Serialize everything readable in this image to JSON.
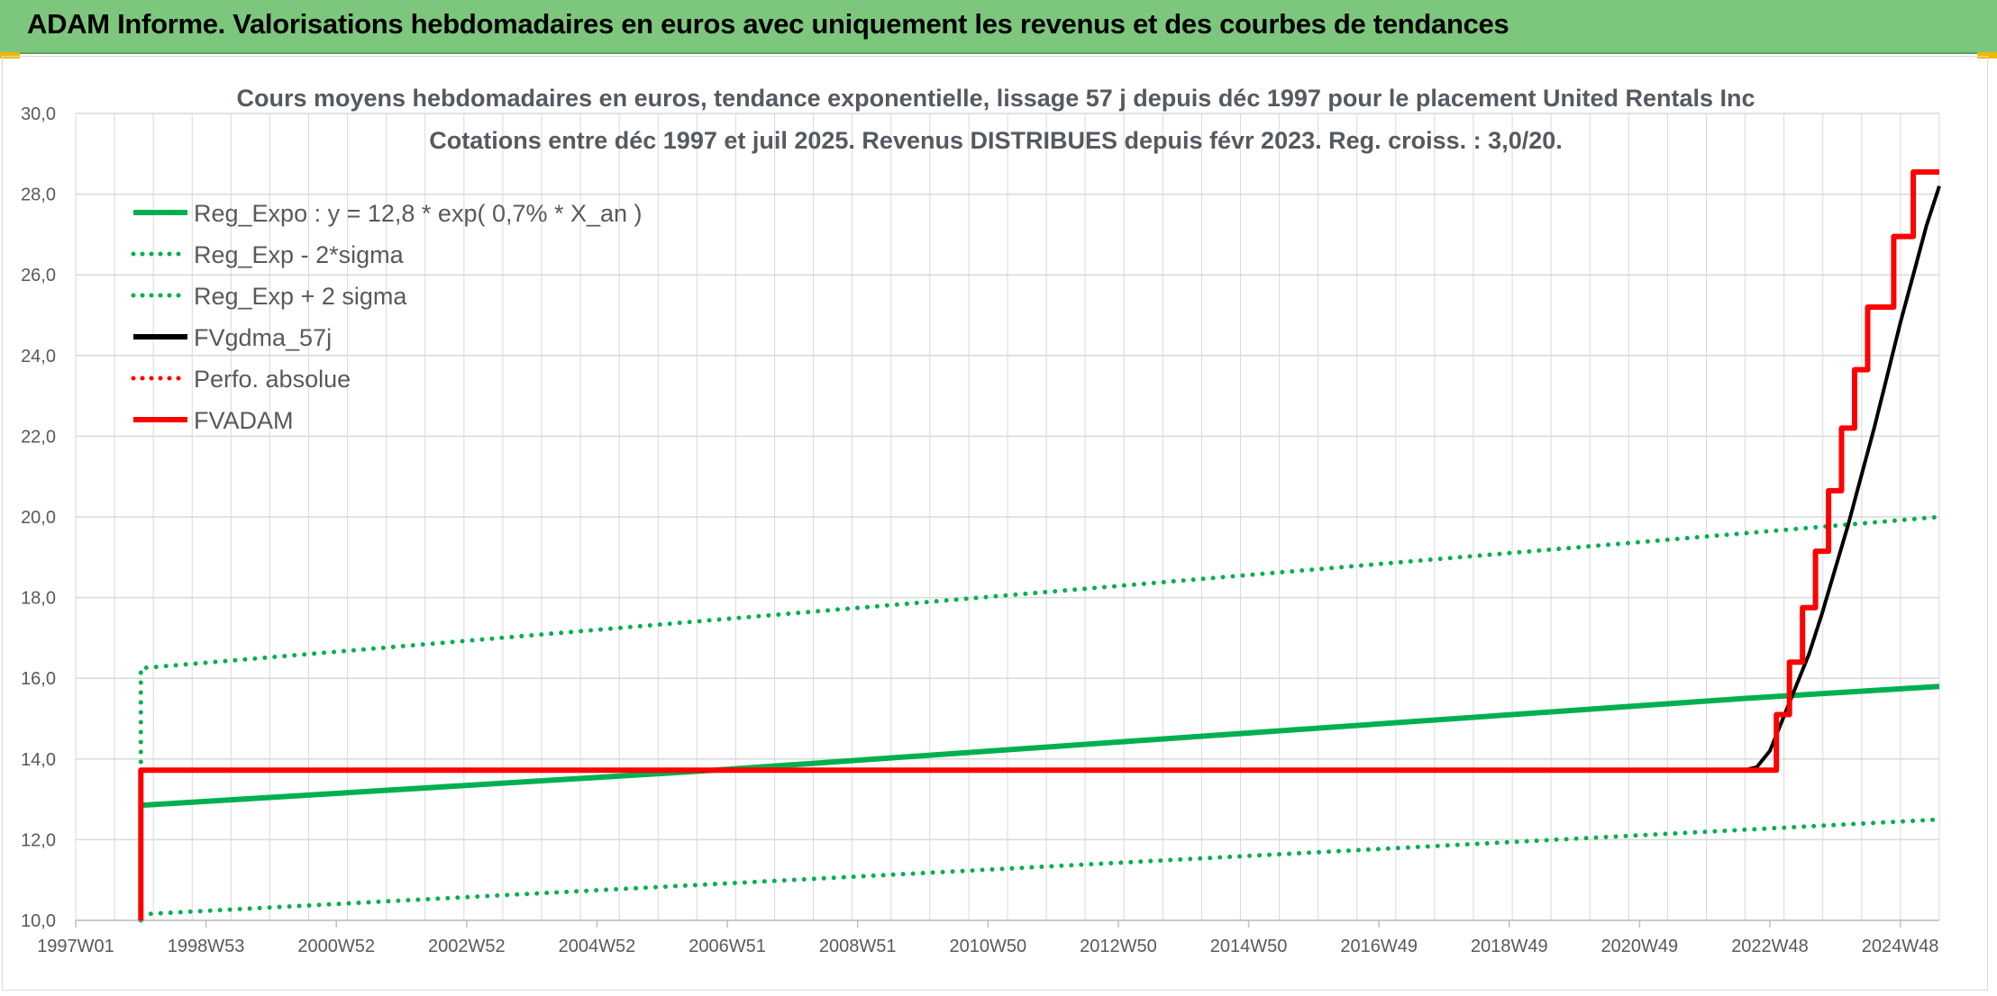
{
  "header": {
    "title": "ADAM Informe. Valorisations hebdomadaires en euros avec uniquement les revenus et des courbes de tendances"
  },
  "colors": {
    "banner": "#7dc77d",
    "green": "#00b050",
    "black": "#000000",
    "red": "#ff0000",
    "grid": "#d9d9d9"
  },
  "chart_data": {
    "type": "line",
    "title": "Cours moyens hebdomadaires en euros, tendance exponentielle, lissage 57 j depuis déc 1997 pour le placement United Rentals Inc",
    "subtitle": "Cotations entre déc 1997 et juil 2025. Revenus DISTRIBUES depuis févr 2023. Reg. croiss. : 3,0/20.",
    "xlabel": "",
    "ylabel": "",
    "ylim": [
      10,
      30
    ],
    "xlim": [
      1997.0,
      2025.6
    ],
    "y_ticks": [
      "10,0",
      "12,0",
      "14,0",
      "16,0",
      "18,0",
      "20,0",
      "22,0",
      "24,0",
      "26,0",
      "28,0",
      "30,0"
    ],
    "x_ticks": [
      {
        "label": "1997W01",
        "x": 1997.0
      },
      {
        "label": "1998W53",
        "x": 1999.0
      },
      {
        "label": "2000W52",
        "x": 2001.0
      },
      {
        "label": "2002W52",
        "x": 2003.0
      },
      {
        "label": "2004W52",
        "x": 2005.0
      },
      {
        "label": "2006W51",
        "x": 2007.0
      },
      {
        "label": "2008W51",
        "x": 2009.0
      },
      {
        "label": "2010W50",
        "x": 2011.0
      },
      {
        "label": "2012W50",
        "x": 2013.0
      },
      {
        "label": "2014W50",
        "x": 2015.0
      },
      {
        "label": "2016W49",
        "x": 2017.0
      },
      {
        "label": "2018W49",
        "x": 2019.0
      },
      {
        "label": "2020W49",
        "x": 2021.0
      },
      {
        "label": "2022W48",
        "x": 2023.0
      },
      {
        "label": "2024W48",
        "x": 2025.0
      }
    ],
    "grid": true,
    "legend_position": "top-left",
    "series": [
      {
        "name": "Reg_Expo : y = 12,8 * exp( 0,7% *  X_an )",
        "color": "#00b050",
        "style": "solid",
        "points": [
          [
            1998.0,
            12.85
          ],
          [
            2006.8,
            13.72
          ],
          [
            2022.6,
            15.5
          ],
          [
            2025.6,
            15.8
          ]
        ]
      },
      {
        "name": "Reg_Exp - 2*sigma",
        "color": "#00b050",
        "style": "dotted",
        "points": [
          [
            1998.0,
            10.15
          ],
          [
            2025.6,
            12.5
          ]
        ]
      },
      {
        "name": "Reg_Exp + 2 sigma",
        "color": "#00b050",
        "style": "dotted",
        "points": [
          [
            1998.0,
            10.0
          ],
          [
            1998.0,
            16.25
          ],
          [
            2025.6,
            20.0
          ]
        ]
      },
      {
        "name": "FVgdma_57j",
        "color": "#000000",
        "style": "solid",
        "points": [
          [
            1998.0,
            13.72
          ],
          [
            2022.6,
            13.72
          ],
          [
            2022.8,
            13.8
          ],
          [
            2023.0,
            14.2
          ],
          [
            2023.2,
            15.0
          ],
          [
            2023.4,
            15.8
          ],
          [
            2023.6,
            16.6
          ],
          [
            2023.8,
            17.6
          ],
          [
            2024.0,
            18.7
          ],
          [
            2024.2,
            19.8
          ],
          [
            2024.4,
            21.0
          ],
          [
            2024.6,
            22.2
          ],
          [
            2024.8,
            23.5
          ],
          [
            2025.0,
            24.8
          ],
          [
            2025.2,
            26.0
          ],
          [
            2025.4,
            27.2
          ],
          [
            2025.6,
            28.2
          ]
        ]
      },
      {
        "name": "Perfo. absolue",
        "color": "#ff0000",
        "style": "dotted",
        "points": []
      },
      {
        "name": "FVADAM",
        "color": "#ff0000",
        "style": "solid",
        "points": [
          [
            1998.0,
            10.0
          ],
          [
            1998.0,
            13.72
          ],
          [
            2023.1,
            13.72
          ],
          [
            2023.1,
            15.1
          ],
          [
            2023.3,
            15.1
          ],
          [
            2023.3,
            16.4
          ],
          [
            2023.5,
            16.4
          ],
          [
            2023.5,
            17.75
          ],
          [
            2023.7,
            17.75
          ],
          [
            2023.7,
            19.15
          ],
          [
            2023.9,
            19.15
          ],
          [
            2023.9,
            20.65
          ],
          [
            2024.1,
            20.65
          ],
          [
            2024.1,
            22.2
          ],
          [
            2024.3,
            22.2
          ],
          [
            2024.3,
            23.65
          ],
          [
            2024.5,
            23.65
          ],
          [
            2024.5,
            25.2
          ],
          [
            2024.9,
            25.2
          ],
          [
            2024.9,
            26.95
          ],
          [
            2025.2,
            26.95
          ],
          [
            2025.2,
            28.55
          ],
          [
            2025.6,
            28.55
          ]
        ]
      }
    ]
  }
}
